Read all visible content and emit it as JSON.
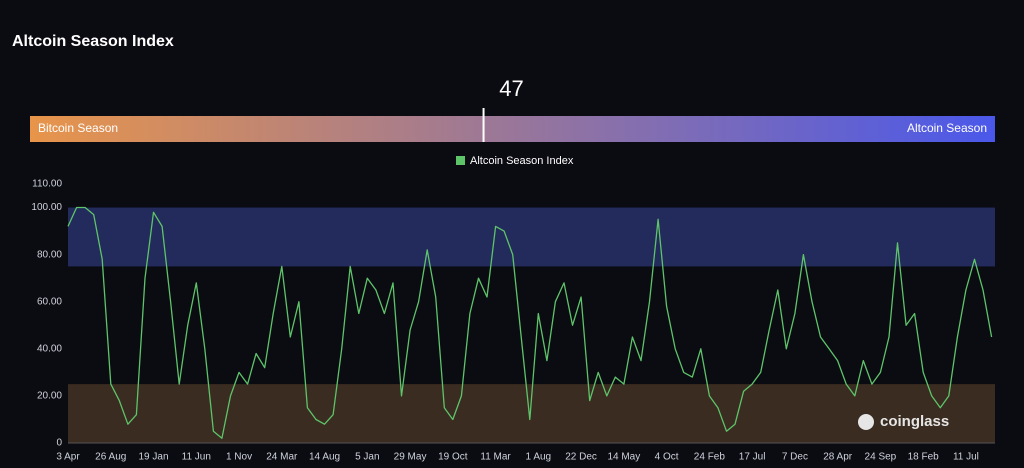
{
  "chart_data": {
    "type": "line",
    "title": "Altcoin Season Index",
    "gauge": {
      "value": 47,
      "min": 0,
      "max": 100,
      "left_label": "Bitcoin Season",
      "right_label": "Altcoin Season",
      "left_color": "#e8954a",
      "right_color": "#4a58ea"
    },
    "bands": [
      {
        "from": 75,
        "to": 100,
        "color": "#232a5c"
      },
      {
        "from": 0,
        "to": 25,
        "color": "#3a2c20"
      }
    ],
    "watermark": "coinglass",
    "categories": [
      "3 Apr",
      null,
      null,
      null,
      null,
      "26 Aug",
      null,
      null,
      null,
      null,
      "19 Jan",
      null,
      null,
      null,
      null,
      "11 Jun",
      null,
      null,
      null,
      null,
      "1 Nov",
      null,
      null,
      null,
      null,
      "24 Mar",
      null,
      null,
      null,
      null,
      "14 Aug",
      null,
      null,
      null,
      null,
      "5 Jan",
      null,
      null,
      null,
      null,
      "29 May",
      null,
      null,
      null,
      null,
      "19 Oct",
      null,
      null,
      null,
      null,
      "11 Mar",
      null,
      null,
      null,
      null,
      "1 Aug",
      null,
      null,
      null,
      null,
      "22 Dec",
      null,
      null,
      null,
      null,
      "14 May",
      null,
      null,
      null,
      null,
      "4 Oct",
      null,
      null,
      null,
      null,
      "24 Feb",
      null,
      null,
      null,
      null,
      "17 Jul",
      null,
      null,
      null,
      null,
      "7 Dec",
      null,
      null,
      null,
      null,
      "28 Apr",
      null,
      null,
      null,
      null,
      "24 Sep",
      null,
      null,
      null,
      null,
      "18 Feb",
      null,
      null,
      null,
      null,
      "11 Jul",
      null,
      null,
      null
    ],
    "series": [
      {
        "name": "Altcoin Season Index",
        "color": "#5ec46a",
        "values": [
          92,
          100,
          100,
          97,
          78,
          25,
          18,
          8,
          12,
          70,
          98,
          92,
          60,
          25,
          50,
          68,
          40,
          5,
          2,
          20,
          30,
          25,
          38,
          32,
          55,
          75,
          45,
          60,
          15,
          10,
          8,
          12,
          40,
          75,
          55,
          70,
          65,
          55,
          68,
          20,
          48,
          60,
          82,
          62,
          15,
          10,
          20,
          55,
          70,
          62,
          92,
          90,
          80,
          45,
          10,
          55,
          35,
          60,
          68,
          50,
          62,
          18,
          30,
          20,
          28,
          25,
          45,
          35,
          60,
          95,
          58,
          40,
          30,
          28,
          40,
          20,
          15,
          5,
          8,
          22,
          25,
          30,
          48,
          65,
          40,
          55,
          80,
          60,
          45,
          40,
          35,
          25,
          20,
          35,
          25,
          30,
          45,
          85,
          50,
          55,
          30,
          20,
          15,
          20,
          45,
          65,
          78,
          65,
          45
        ]
      }
    ],
    "ylim": [
      0,
      110
    ],
    "yticks": [
      0,
      {
        "value": 20,
        "label": "20.00"
      },
      {
        "value": 40,
        "label": "40.00"
      },
      {
        "value": 60,
        "label": "60.00"
      },
      {
        "value": 80,
        "label": "80.00"
      },
      {
        "value": 100,
        "label": "100.00"
      },
      {
        "value": 110,
        "label": "110.00"
      }
    ],
    "legend": "top"
  }
}
